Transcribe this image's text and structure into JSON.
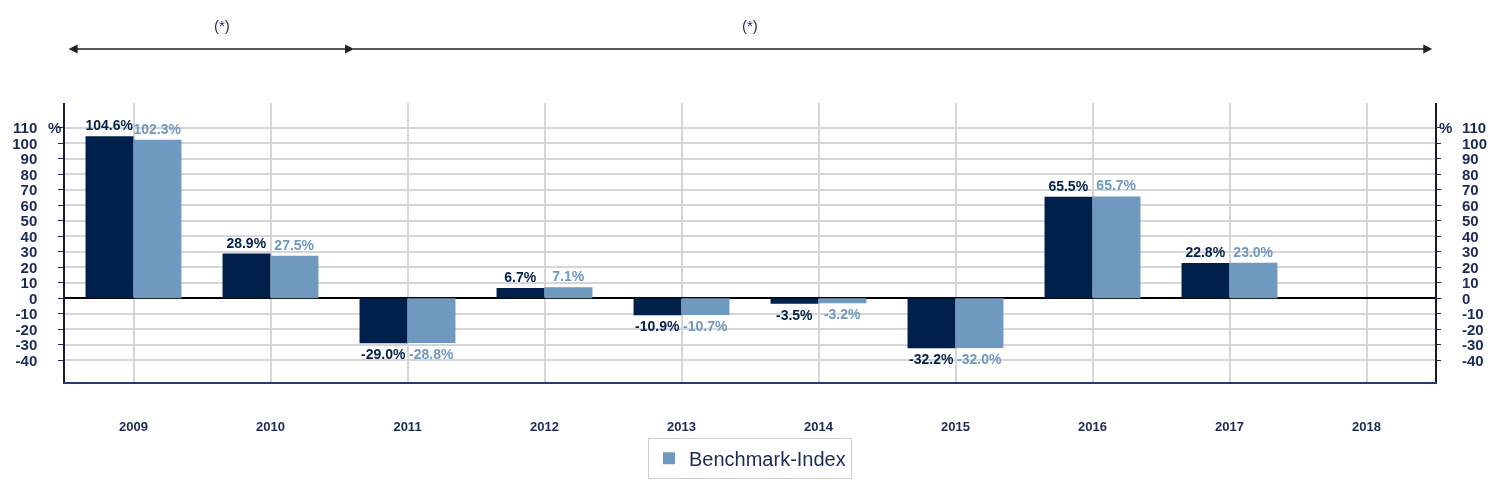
{
  "chart_data": {
    "type": "bar",
    "categories": [
      "2009",
      "2010",
      "2011",
      "2012",
      "2013",
      "2014",
      "2015",
      "2016",
      "2017",
      "2018"
    ],
    "series": [
      {
        "color": "#001f4a",
        "values": [
          104.6,
          28.9,
          -29.0,
          6.7,
          -10.9,
          -3.5,
          -32.2,
          65.5,
          22.8,
          null
        ],
        "value_labels": [
          "104.6%",
          "28.9%",
          "-29.0%",
          "6.7%",
          "-10.9%",
          "-3.5%",
          "-32.2%",
          "65.5%",
          "22.8%",
          null
        ]
      },
      {
        "name": "Benchmark-Index",
        "color": "#7099c0",
        "values": [
          102.3,
          27.5,
          -28.8,
          7.1,
          -10.7,
          -3.2,
          -32.0,
          65.7,
          23.0,
          null
        ],
        "value_labels": [
          "102.3%",
          "27.5%",
          "-28.8%",
          "7.1%",
          "-10.7%",
          "-3.2%",
          "-32.0%",
          "65.7%",
          "23.0%",
          null
        ]
      }
    ],
    "ylim": [
      -54,
      126
    ],
    "yticks": [
      -40,
      -30,
      -20,
      -10,
      0,
      10,
      20,
      30,
      40,
      50,
      60,
      70,
      80,
      90,
      100,
      110
    ],
    "y2lim": [
      -54,
      126
    ],
    "y2ticks": [
      -40,
      -30,
      -20,
      -10,
      0,
      10,
      20,
      30,
      40,
      50,
      60,
      70,
      80,
      90,
      100,
      110
    ],
    "ylabel": "%",
    "y2label": "%",
    "annotations": [
      "(*)",
      "(*)"
    ],
    "grid": true,
    "legend": "bottom"
  }
}
